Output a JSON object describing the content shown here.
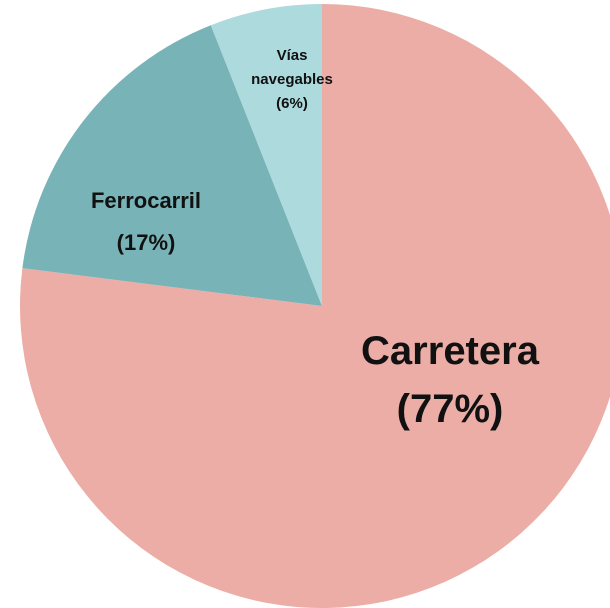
{
  "chart_data": {
    "type": "pie",
    "categories": [
      "Carretera",
      "Ferrocarril",
      "Vías navegables"
    ],
    "values": [
      77,
      17,
      6
    ],
    "value_labels": [
      "(77%)",
      "(17%)",
      "(6%)"
    ],
    "colors": [
      "#ebada6",
      "#78b3b8",
      "#acdadd"
    ],
    "start_angle": "top",
    "direction": "clockwise"
  }
}
